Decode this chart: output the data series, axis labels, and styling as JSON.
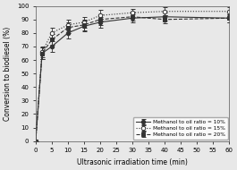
{
  "xlabel": "Ultrasonic irradiation time (min)",
  "ylabel": "Conversion to biodiesel (%)",
  "xlim": [
    0,
    60
  ],
  "ylim": [
    0,
    100
  ],
  "xticks": [
    0,
    5,
    10,
    15,
    20,
    25,
    30,
    35,
    40,
    45,
    50,
    55,
    60
  ],
  "yticks": [
    0,
    10,
    20,
    30,
    40,
    50,
    60,
    70,
    80,
    90,
    100
  ],
  "series": [
    {
      "label": "Methanol to oil ratio = 10%",
      "x": [
        0,
        2,
        5,
        10,
        15,
        20,
        30,
        40,
        60
      ],
      "y": [
        0,
        65,
        70,
        80,
        85,
        88,
        91,
        92,
        91
      ],
      "yerr": [
        0,
        4,
        4,
        4,
        4,
        4,
        3,
        3,
        3
      ],
      "linestyle": "-",
      "marker": "o",
      "markerfacecolor": "#333333",
      "color": "#333333"
    },
    {
      "label": "Methanol to oil ratio = 15%",
      "x": [
        0,
        2,
        5,
        10,
        15,
        20,
        30,
        40,
        60
      ],
      "y": [
        0,
        66,
        80,
        86,
        88,
        93,
        95,
        96,
        96
      ],
      "yerr": [
        0,
        4,
        4,
        4,
        4,
        4,
        3,
        3,
        3
      ],
      "linestyle": ":",
      "marker": "o",
      "markerfacecolor": "#ffffff",
      "color": "#333333"
    },
    {
      "label": "Methanol to oil ratio = 20%",
      "x": [
        0,
        2,
        5,
        10,
        15,
        20,
        30,
        40,
        60
      ],
      "y": [
        0,
        65,
        75,
        84,
        86,
        90,
        92,
        90,
        91
      ],
      "yerr": [
        0,
        4,
        4,
        4,
        4,
        4,
        3,
        3,
        3
      ],
      "linestyle": "--",
      "marker": "s",
      "markerfacecolor": "#333333",
      "color": "#333333"
    }
  ],
  "background_color": "#e8e8e8",
  "legend_fontsize": 4.2,
  "tick_fontsize": 5.0,
  "label_fontsize": 5.5
}
